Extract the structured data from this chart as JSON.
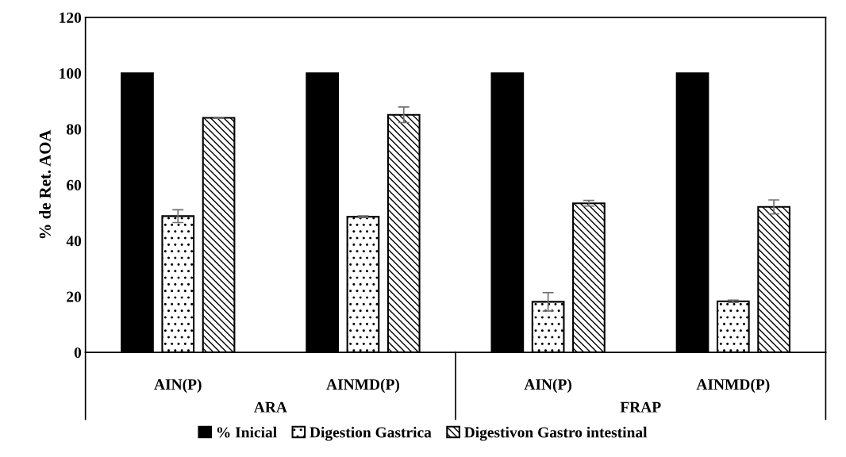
{
  "chart_data": {
    "type": "bar",
    "ylabel": "% de Ret. AOA",
    "categories": [
      "AIN(P)",
      "AINMD(P)",
      "AIN(P)",
      "AINMD(P)"
    ],
    "series": [
      {
        "name": "% Inicial",
        "color": "#000000",
        "values": [
          100,
          100,
          100,
          100
        ]
      },
      {
        "name": "Digestion Gastrica",
        "color": "#000000",
        "values": [
          48.8,
          48.6,
          18.1,
          18.3
        ],
        "errors": [
          2.3,
          0.3,
          3.3,
          0.4
        ]
      },
      {
        "name": "Digestivon Gastro intestinal",
        "color": "#000000",
        "values": [
          84.0,
          85.1,
          53.4,
          52.1
        ],
        "errors": [
          0.2,
          2.8,
          1.0,
          2.5
        ]
      }
    ],
    "annotations": [
      "ARA",
      "FRAP"
    ],
    "ylim": [
      0,
      120
    ],
    "yticks": [
      0,
      20,
      40,
      60,
      80,
      100,
      120
    ],
    "grid": false,
    "legend": "bottom"
  }
}
